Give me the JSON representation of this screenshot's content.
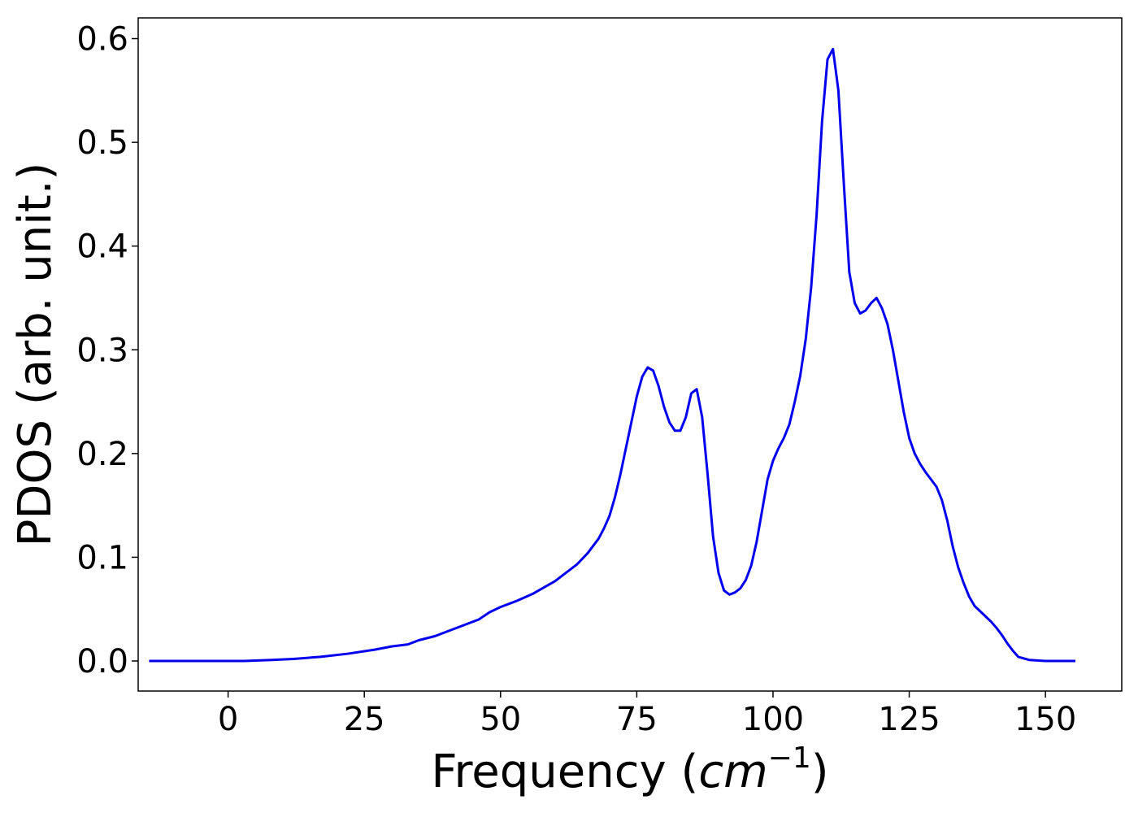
{
  "chart_data": {
    "type": "line",
    "title": "",
    "xlabel": "Frequency",
    "xlabel_unit": "cm",
    "xlabel_exponent": "−1",
    "ylabel": "PDOS (arb. unit.)",
    "xlim": [
      -16.5,
      164
    ],
    "ylim": [
      -0.029,
      0.62
    ],
    "xticks": [
      0,
      25,
      50,
      75,
      100,
      125,
      150
    ],
    "yticks": [
      0.0,
      0.1,
      0.2,
      0.3,
      0.4,
      0.5,
      0.6
    ],
    "ytick_labels": [
      "0.0",
      "0.1",
      "0.2",
      "0.3",
      "0.4",
      "0.5",
      "0.6"
    ],
    "grid": false,
    "series": [
      {
        "color": "#0000ee",
        "x": [
          -14.5,
          0,
          3,
          8,
          12,
          17,
          22,
          27,
          30,
          33,
          35,
          38,
          40,
          43,
          46,
          48,
          50,
          53,
          56,
          58,
          60,
          62,
          64,
          66,
          68,
          69,
          70,
          71,
          72,
          73,
          74,
          75,
          76,
          77,
          78,
          79,
          80,
          81,
          82,
          83,
          84,
          85,
          86,
          87,
          88,
          89,
          90,
          91,
          92,
          93,
          94,
          95,
          96,
          97,
          98,
          99,
          100,
          101,
          102,
          103,
          104,
          105,
          106,
          107,
          108,
          109,
          110,
          111,
          112,
          113,
          114,
          115,
          116,
          117,
          118,
          119,
          120,
          121,
          122,
          123,
          124,
          125,
          126,
          127,
          128,
          129,
          130,
          131,
          132,
          133,
          134,
          135,
          136,
          137,
          138,
          139,
          140,
          141,
          142,
          143,
          144,
          145,
          147,
          150,
          155.5
        ],
        "y": [
          0.0,
          0.0,
          0.0,
          0.001,
          0.002,
          0.004,
          0.007,
          0.011,
          0.014,
          0.016,
          0.02,
          0.024,
          0.028,
          0.034,
          0.04,
          0.047,
          0.052,
          0.058,
          0.065,
          0.071,
          0.077,
          0.085,
          0.093,
          0.104,
          0.118,
          0.128,
          0.14,
          0.158,
          0.18,
          0.205,
          0.23,
          0.255,
          0.274,
          0.283,
          0.28,
          0.265,
          0.245,
          0.23,
          0.222,
          0.222,
          0.235,
          0.258,
          0.262,
          0.235,
          0.18,
          0.12,
          0.085,
          0.068,
          0.064,
          0.066,
          0.07,
          0.078,
          0.092,
          0.115,
          0.145,
          0.175,
          0.193,
          0.205,
          0.215,
          0.228,
          0.25,
          0.275,
          0.31,
          0.36,
          0.43,
          0.52,
          0.58,
          0.59,
          0.55,
          0.46,
          0.375,
          0.345,
          0.335,
          0.338,
          0.345,
          0.35,
          0.34,
          0.325,
          0.3,
          0.27,
          0.24,
          0.215,
          0.2,
          0.19,
          0.182,
          0.175,
          0.168,
          0.155,
          0.135,
          0.11,
          0.09,
          0.075,
          0.062,
          0.053,
          0.048,
          0.043,
          0.038,
          0.032,
          0.025,
          0.017,
          0.01,
          0.004,
          0.001,
          0.0,
          0.0
        ]
      }
    ]
  }
}
